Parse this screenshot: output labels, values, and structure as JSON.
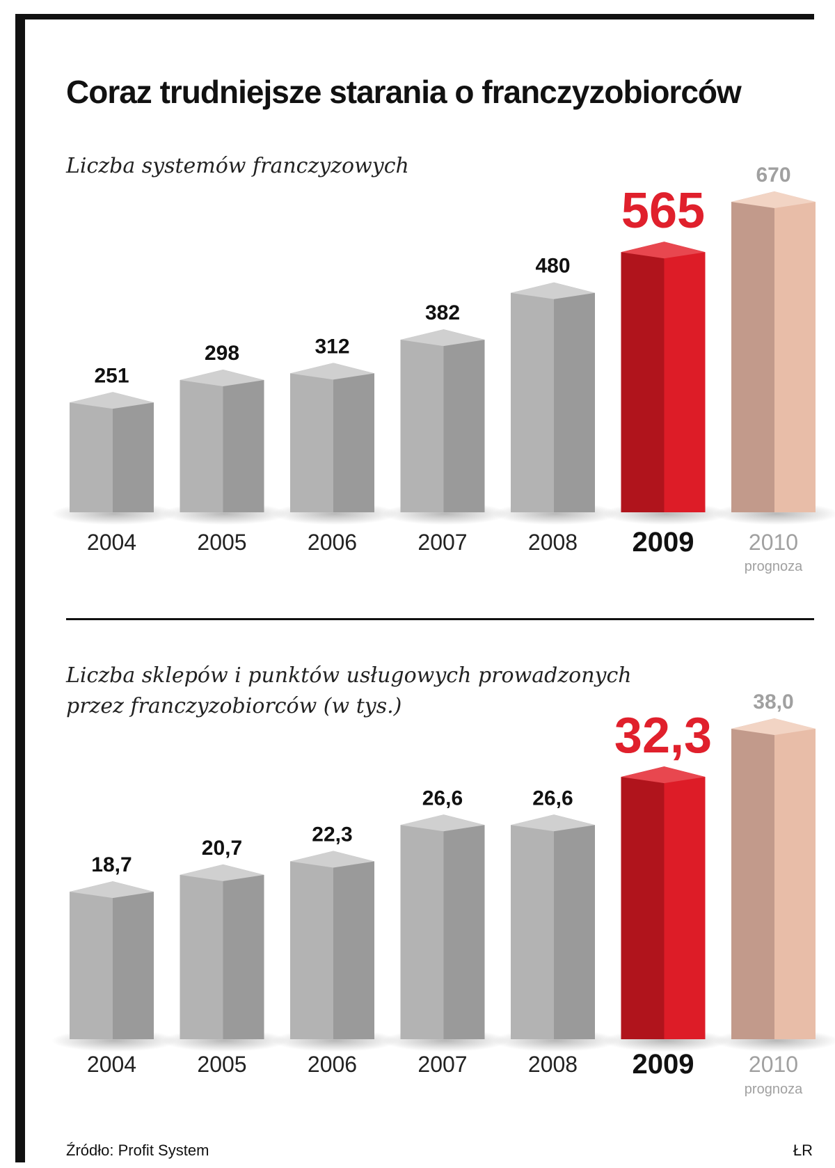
{
  "title": "Coraz trudniejsze starania o franczyzobiorców",
  "source": "Źródło: Profit System",
  "credit": "ŁR",
  "colors": {
    "gray_front": "#b3b3b3",
    "gray_side": "#9a9a9a",
    "gray_top": "#d0d0d0",
    "red_front": "#dd1c27",
    "red_side": "#b0141c",
    "red_top": "#e8474f",
    "fc_front": "#e8bda8",
    "fc_side": "#c29a8b",
    "fc_top": "#f2d4c4",
    "highlight_text": "#e0202c",
    "forecast_text": "#a0a0a0"
  },
  "chart_data": [
    {
      "type": "bar",
      "title": "Liczba systemów franczyzowych",
      "categories": [
        "2004",
        "2005",
        "2006",
        "2007",
        "2008",
        "2009",
        "2010"
      ],
      "values": [
        251,
        298,
        312,
        382,
        480,
        565,
        670
      ],
      "value_labels": [
        "251",
        "298",
        "312",
        "382",
        "480",
        "565",
        "670"
      ],
      "highlight": "2009",
      "forecast": "2010",
      "forecast_note": "prognoza"
    },
    {
      "type": "bar",
      "title_lines": [
        "Liczba sklepów i punktów usługowych prowadzonych",
        "przez franczyzobiorców (w tys.)"
      ],
      "categories": [
        "2004",
        "2005",
        "2006",
        "2007",
        "2008",
        "2009",
        "2010"
      ],
      "values": [
        18.7,
        20.7,
        22.3,
        26.6,
        26.6,
        32.3,
        38.0
      ],
      "value_labels": [
        "18,7",
        "20,7",
        "22,3",
        "26,6",
        "26,6",
        "32,3",
        "38,0"
      ],
      "highlight": "2009",
      "forecast": "2010",
      "forecast_note": "prognoza"
    }
  ]
}
